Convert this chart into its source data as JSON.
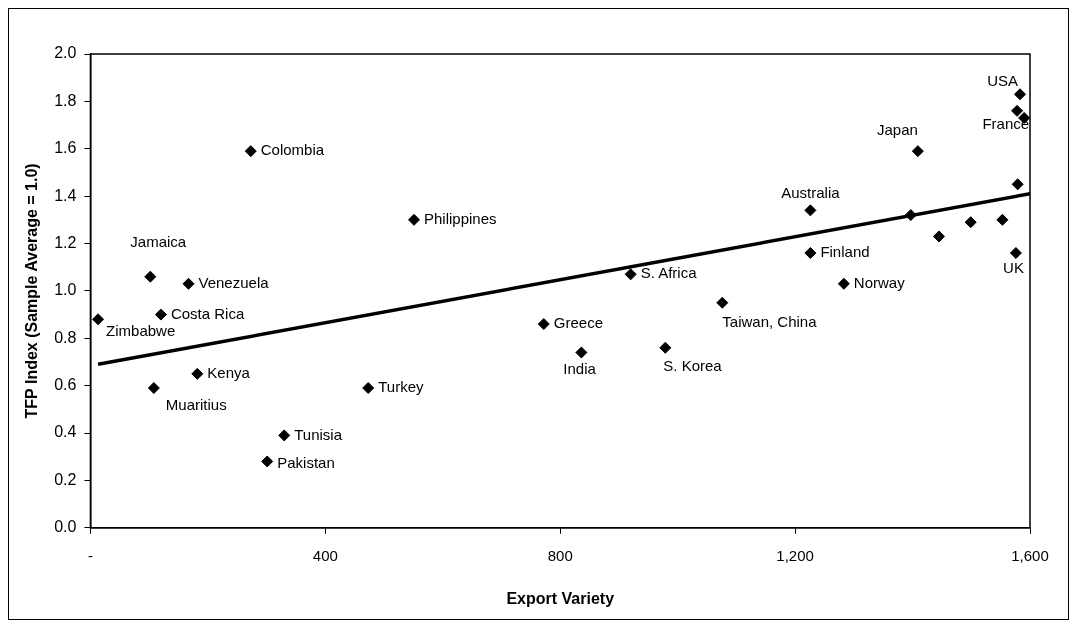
{
  "chart_data": {
    "type": "scatter",
    "xlabel": "Export Variety",
    "ylabel": "TFP Index (Sample Average = 1.0)",
    "xlim": [
      0,
      1600
    ],
    "ylim": [
      0,
      2.0
    ],
    "xticks": [
      {
        "value": 0,
        "label": "-"
      },
      400,
      800,
      {
        "value": 1200,
        "label": "1,200"
      },
      {
        "value": 1600,
        "label": "1,600"
      }
    ],
    "yticks": [
      {
        "value": 0,
        "label": "0.0"
      },
      {
        "value": 0.2,
        "label": "0.2"
      },
      {
        "value": 0.4,
        "label": "0.4"
      },
      {
        "value": 0.6,
        "label": "0.6"
      },
      {
        "value": 0.8,
        "label": "0.8"
      },
      {
        "value": 1.0,
        "label": "1.0"
      },
      {
        "value": 1.2,
        "label": "1.2"
      },
      {
        "value": 1.4,
        "label": "1.4"
      },
      {
        "value": 1.6,
        "label": "1.6"
      },
      {
        "value": 1.8,
        "label": "1.8"
      },
      {
        "value": 2.0,
        "label": "2.0"
      }
    ],
    "legend": false,
    "series": [
      {
        "marker": "diamond",
        "color": "#000000",
        "x": [
          273,
          551,
          102,
          167,
          120,
          13,
          182,
          108,
          473,
          330,
          301,
          772,
          836,
          979,
          1076,
          920,
          1226,
          1226,
          1283,
          1409,
          1583,
          1578,
          1576,
          1397,
          1445,
          1499,
          1553,
          1579,
          1590
        ],
        "values": [
          1.59,
          1.3,
          1.06,
          1.03,
          0.9,
          0.88,
          0.65,
          0.59,
          0.59,
          0.39,
          0.28,
          0.86,
          0.74,
          0.76,
          0.95,
          1.07,
          1.34,
          1.16,
          1.03,
          1.59,
          1.83,
          1.76,
          1.16,
          1.32,
          1.23,
          1.29,
          1.3,
          1.45,
          1.73
        ]
      },
      {
        "type": "line",
        "marker": "none",
        "color": "#000000",
        "x": [
          13,
          1600
        ],
        "values": [
          0.69,
          1.41
        ]
      }
    ],
    "annotations": [
      {
        "text": "Colombia",
        "x": 273,
        "y": 1.59
      },
      {
        "text": "Philippines",
        "x": 551,
        "y": 1.3
      },
      {
        "text": "Jamaica",
        "x": 102,
        "y": 1.06
      },
      {
        "text": "Venezuela",
        "x": 167,
        "y": 1.03
      },
      {
        "text": "Costa Rica",
        "x": 120,
        "y": 0.9
      },
      {
        "text": "Zimbabwe",
        "x": 13,
        "y": 0.88
      },
      {
        "text": "Kenya",
        "x": 182,
        "y": 0.65
      },
      {
        "text": "Muaritius",
        "x": 108,
        "y": 0.59
      },
      {
        "text": "Turkey",
        "x": 473,
        "y": 0.59
      },
      {
        "text": "Tunisia",
        "x": 330,
        "y": 0.39
      },
      {
        "text": "Pakistan",
        "x": 301,
        "y": 0.28
      },
      {
        "text": "Greece",
        "x": 772,
        "y": 0.86
      },
      {
        "text": "India",
        "x": 836,
        "y": 0.74
      },
      {
        "text": "S. Korea",
        "x": 979,
        "y": 0.76
      },
      {
        "text": "Taiwan, China",
        "x": 1076,
        "y": 0.95
      },
      {
        "text": "S. Africa",
        "x": 920,
        "y": 1.07
      },
      {
        "text": "Australia",
        "x": 1226,
        "y": 1.34
      },
      {
        "text": "Finland",
        "x": 1226,
        "y": 1.16
      },
      {
        "text": "Norway",
        "x": 1283,
        "y": 1.03
      },
      {
        "text": "Japan",
        "x": 1409,
        "y": 1.59
      },
      {
        "text": "USA",
        "x": 1583,
        "y": 1.83
      },
      {
        "text": "France",
        "x": 1578,
        "y": 1.76
      },
      {
        "text": "UK",
        "x": 1576,
        "y": 1.16
      }
    ]
  }
}
